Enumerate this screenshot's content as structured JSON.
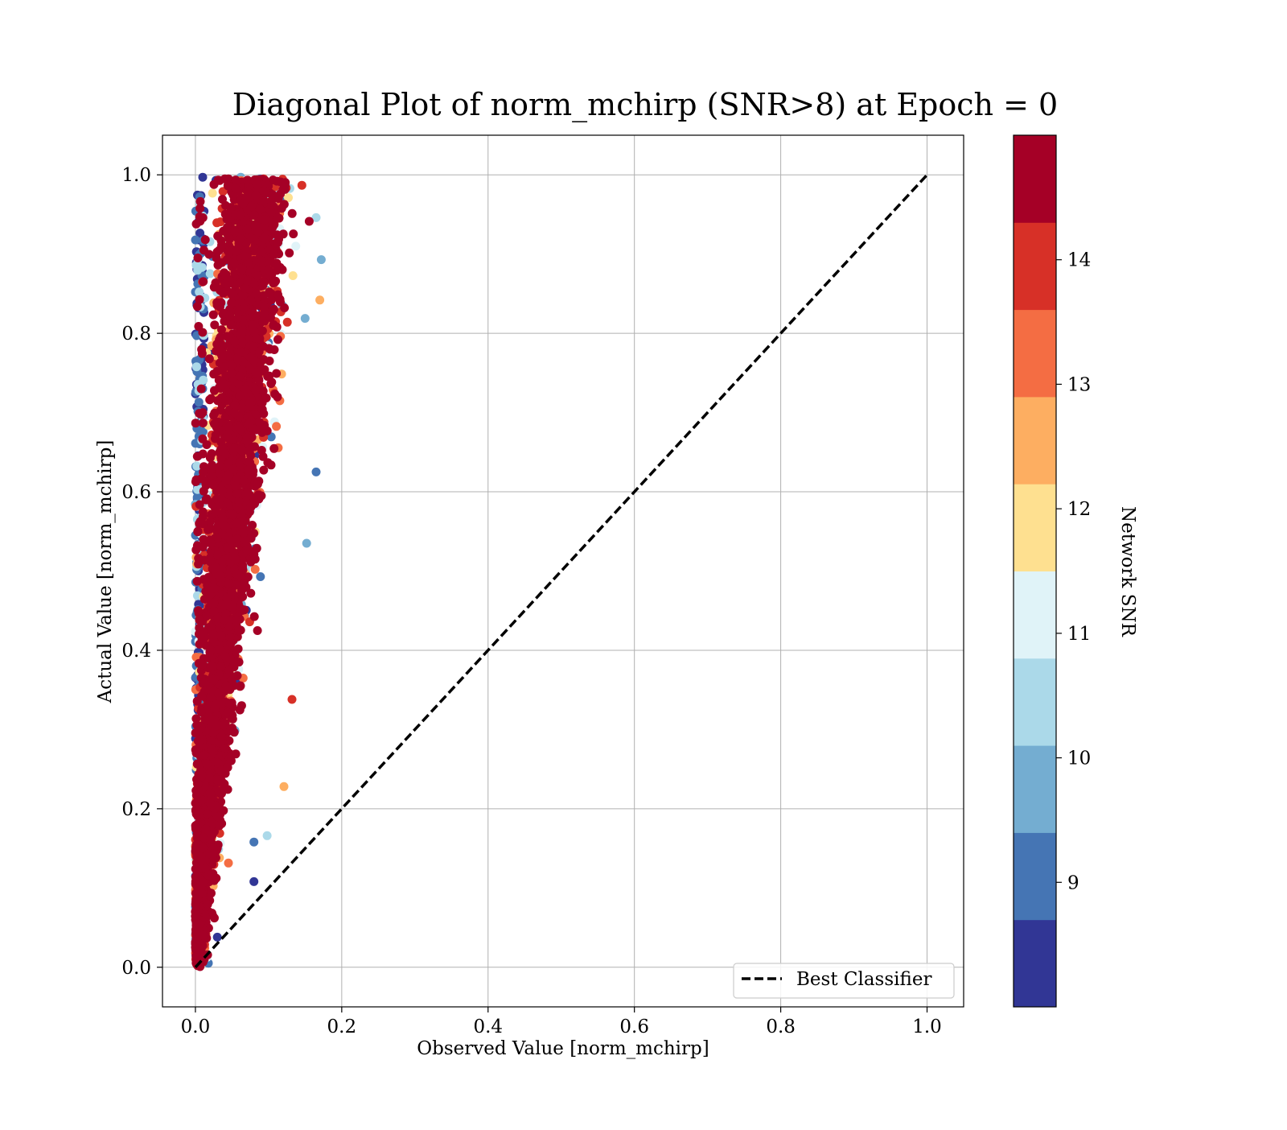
{
  "chart_data": {
    "type": "scatter",
    "title": "Diagonal Plot of norm_mchirp (SNR>8) at Epoch = 0",
    "xlabel": "Observed Value [norm_mchirp]",
    "ylabel": "Actual Value [norm_mchirp]",
    "xlim": [
      -0.045,
      1.05
    ],
    "ylim": [
      -0.05,
      1.05
    ],
    "xticks": [
      "0.0",
      "0.2",
      "0.4",
      "0.6",
      "0.8",
      "1.0"
    ],
    "yticks": [
      "0.0",
      "0.2",
      "0.4",
      "0.6",
      "0.8",
      "1.0"
    ],
    "xtick_values": [
      0.0,
      0.2,
      0.4,
      0.6,
      0.8,
      1.0
    ],
    "ytick_values": [
      0.0,
      0.2,
      0.4,
      0.6,
      0.8,
      1.0
    ],
    "grid": true,
    "legend": {
      "position": "lower-right",
      "entries": [
        "Best Classifier"
      ]
    },
    "reference_line": {
      "name": "Best Classifier",
      "x": [
        0.0,
        1.0
      ],
      "y": [
        0.0,
        1.0
      ],
      "style": "dashed",
      "color": "#000000"
    },
    "points_summary": {
      "description_of_distribution": "dense cloud; observed value ranges roughly 0.0-0.17 while actual value ranges 0.0-1.0, observed roughly 0.1 x actual",
      "observed_range": [
        0.0,
        0.17
      ],
      "actual_range": [
        0.0,
        1.0
      ],
      "dominant_snr": 14.5
    },
    "sample_points": [
      {
        "x": 0.01,
        "y": 0.997,
        "snr": 8.3
      },
      {
        "x": 0.028,
        "y": 0.993,
        "snr": 8.5
      },
      {
        "x": 0.062,
        "y": 0.997,
        "snr": 9.5
      },
      {
        "x": 0.105,
        "y": 0.99,
        "snr": 14.5
      },
      {
        "x": 0.172,
        "y": 0.893,
        "snr": 10.0
      },
      {
        "x": 0.17,
        "y": 0.842,
        "snr": 12.4
      },
      {
        "x": 0.165,
        "y": 0.946,
        "snr": 10.4
      },
      {
        "x": 0.165,
        "y": 0.625,
        "snr": 9.2
      },
      {
        "x": 0.152,
        "y": 0.535,
        "snr": 9.8
      },
      {
        "x": 0.132,
        "y": 0.338,
        "snr": 14.0
      },
      {
        "x": 0.121,
        "y": 0.228,
        "snr": 12.3
      },
      {
        "x": 0.098,
        "y": 0.166,
        "snr": 10.4
      },
      {
        "x": 0.08,
        "y": 0.158,
        "snr": 9.2
      },
      {
        "x": 0.08,
        "y": 0.108,
        "snr": 8.3
      },
      {
        "x": 0.03,
        "y": 0.038,
        "snr": 8.3
      },
      {
        "x": 0.003,
        "y": 0.002,
        "snr": 14.5
      }
    ],
    "colorbar": {
      "label": "Network SNR",
      "vmin": 8.0,
      "vmax": 15.0,
      "ticks": [
        "9",
        "10",
        "11",
        "12",
        "13",
        "14"
      ],
      "tick_values": [
        9,
        10,
        11,
        12,
        13,
        14
      ],
      "colors": [
        "#313695",
        "#4575b4",
        "#74add1",
        "#abd9e9",
        "#e0f3f8",
        "#fee090",
        "#fdae61",
        "#f46d43",
        "#d73027",
        "#a50026"
      ]
    }
  }
}
